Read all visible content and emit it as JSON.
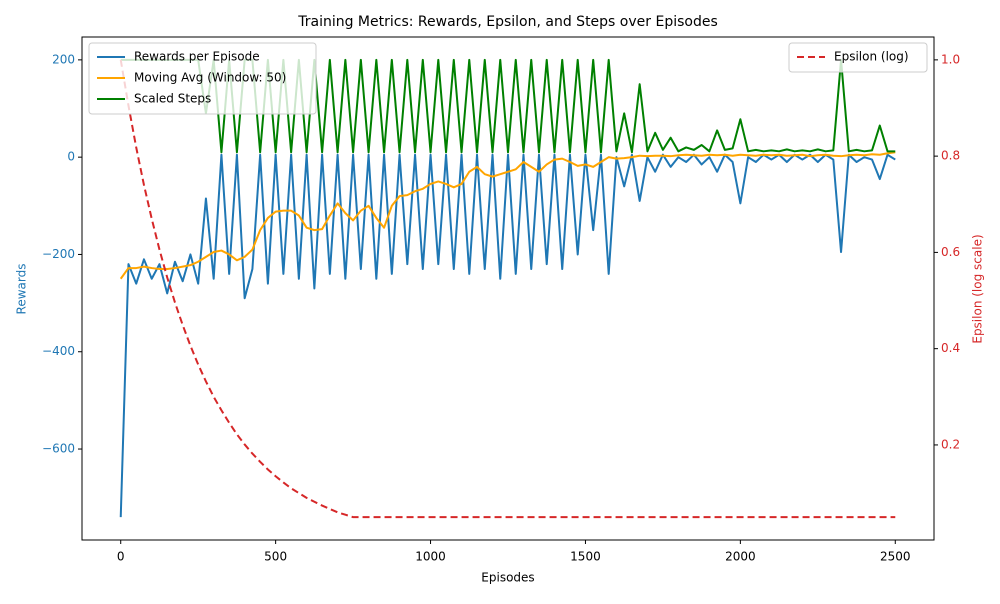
{
  "chart_data": {
    "type": "line",
    "title": "Training Metrics: Rewards, Epsilon, and Steps over Episodes",
    "xlabel": "Episodes",
    "ylabel": "Rewards",
    "y2label": "Epsilon (log scale)",
    "x": [
      0,
      25,
      50,
      75,
      100,
      125,
      150,
      175,
      200,
      225,
      250,
      275,
      300,
      325,
      350,
      375,
      400,
      425,
      450,
      475,
      500,
      525,
      550,
      575,
      600,
      625,
      650,
      675,
      700,
      725,
      750,
      775,
      800,
      825,
      850,
      875,
      900,
      925,
      950,
      975,
      1000,
      1025,
      1050,
      1075,
      1100,
      1125,
      1150,
      1175,
      1200,
      1225,
      1250,
      1275,
      1300,
      1325,
      1350,
      1375,
      1400,
      1425,
      1450,
      1475,
      1500,
      1525,
      1550,
      1575,
      1600,
      1625,
      1650,
      1675,
      1700,
      1725,
      1750,
      1775,
      1800,
      1825,
      1850,
      1875,
      1900,
      1925,
      1950,
      1975,
      2000,
      2025,
      2050,
      2075,
      2100,
      2125,
      2150,
      2175,
      2200,
      2225,
      2250,
      2275,
      2300,
      2325,
      2350,
      2375,
      2400,
      2425,
      2450,
      2475,
      2500
    ],
    "series": [
      {
        "name": "Rewards per Episode",
        "color": "#1f77b4",
        "axis": "y",
        "dash": false,
        "values": [
          -740,
          -220,
          -260,
          -210,
          -250,
          -220,
          -280,
          -215,
          -255,
          -200,
          -260,
          -85,
          -250,
          5,
          -240,
          5,
          -290,
          -230,
          5,
          -260,
          5,
          -240,
          5,
          -250,
          5,
          -270,
          5,
          -240,
          5,
          -250,
          5,
          -230,
          5,
          -250,
          5,
          -240,
          5,
          -220,
          5,
          -230,
          5,
          -220,
          5,
          -230,
          5,
          -240,
          5,
          -230,
          5,
          -250,
          5,
          -240,
          5,
          -230,
          5,
          -220,
          5,
          -230,
          5,
          -200,
          5,
          -150,
          5,
          -240,
          0,
          -60,
          5,
          -90,
          0,
          -30,
          5,
          -20,
          0,
          -10,
          5,
          -15,
          0,
          -30,
          5,
          -10,
          -95,
          0,
          -10,
          5,
          -5,
          5,
          -10,
          5,
          -5,
          5,
          -10,
          5,
          -5,
          -195,
          5,
          -10,
          0,
          -5,
          -45,
          5,
          -5
        ]
      },
      {
        "name": "Moving Avg (Window: 50)",
        "color": "#ffa500",
        "axis": "y",
        "dash": false,
        "values": [
          -250,
          -228,
          -228,
          -225,
          -228,
          -230,
          -230,
          -228,
          -225,
          -222,
          -215,
          -205,
          -195,
          -192,
          -200,
          -212,
          -205,
          -190,
          -150,
          -125,
          -112,
          -110,
          -110,
          -120,
          -145,
          -150,
          -148,
          -120,
          -95,
          -115,
          -130,
          -110,
          -100,
          -125,
          -145,
          -100,
          -80,
          -78,
          -70,
          -65,
          -55,
          -50,
          -55,
          -62,
          -55,
          -30,
          -20,
          -35,
          -40,
          -35,
          -30,
          -25,
          -10,
          -20,
          -30,
          -15,
          -5,
          -3,
          -10,
          -18,
          -15,
          -20,
          -10,
          0,
          -3,
          -2,
          0,
          3,
          2,
          3,
          3,
          2,
          4,
          5,
          4,
          3,
          5,
          4,
          5,
          3,
          5,
          4,
          3,
          5,
          4,
          5,
          3,
          4,
          5,
          2,
          4,
          5,
          3,
          2,
          4,
          5,
          4,
          6,
          5,
          8,
          10
        ]
      },
      {
        "name": "Scaled Steps",
        "color": "#008000",
        "axis": "y",
        "dash": false,
        "values": [
          200,
          200,
          200,
          200,
          200,
          200,
          200,
          200,
          200,
          200,
          200,
          90,
          200,
          10,
          200,
          10,
          200,
          200,
          10,
          200,
          10,
          200,
          10,
          200,
          10,
          200,
          10,
          200,
          10,
          200,
          10,
          200,
          10,
          200,
          10,
          200,
          10,
          200,
          10,
          200,
          10,
          200,
          10,
          200,
          10,
          200,
          10,
          200,
          10,
          200,
          10,
          200,
          10,
          200,
          10,
          200,
          10,
          200,
          10,
          200,
          10,
          200,
          10,
          200,
          12,
          90,
          10,
          150,
          12,
          50,
          15,
          40,
          12,
          20,
          15,
          25,
          12,
          55,
          15,
          18,
          78,
          12,
          15,
          12,
          14,
          12,
          16,
          12,
          14,
          12,
          16,
          12,
          14,
          200,
          12,
          15,
          12,
          14,
          65,
          12,
          12
        ]
      },
      {
        "name": "Epsilon (log)",
        "color": "#d62728",
        "axis": "y2",
        "dash": true,
        "values": [
          1.0,
          0.905,
          0.818,
          0.74,
          0.67,
          0.606,
          0.548,
          0.496,
          0.449,
          0.406,
          0.367,
          0.332,
          0.3,
          0.272,
          0.246,
          0.222,
          0.201,
          0.182,
          0.165,
          0.149,
          0.135,
          0.122,
          0.11,
          0.1,
          0.09,
          0.082,
          0.074,
          0.067,
          0.06,
          0.055,
          0.05,
          0.05,
          0.05,
          0.05,
          0.05,
          0.05,
          0.05,
          0.05,
          0.05,
          0.05,
          0.05,
          0.05,
          0.05,
          0.05,
          0.05,
          0.05,
          0.05,
          0.05,
          0.05,
          0.05,
          0.05,
          0.05,
          0.05,
          0.05,
          0.05,
          0.05,
          0.05,
          0.05,
          0.05,
          0.05,
          0.05,
          0.05,
          0.05,
          0.05,
          0.05,
          0.05,
          0.05,
          0.05,
          0.05,
          0.05,
          0.05,
          0.05,
          0.05,
          0.05,
          0.05,
          0.05,
          0.05,
          0.05,
          0.05,
          0.05,
          0.05,
          0.05,
          0.05,
          0.05,
          0.05,
          0.05,
          0.05,
          0.05,
          0.05,
          0.05,
          0.05,
          0.05,
          0.05,
          0.05,
          0.05,
          0.05,
          0.05,
          0.05,
          0.05,
          0.05,
          0.05
        ]
      }
    ],
    "xlim": [
      -125,
      2625
    ],
    "xticks": [
      0,
      500,
      1000,
      1500,
      2000,
      2500
    ],
    "ylim": [
      -787,
      247
    ],
    "yticks": [
      {
        "value": -600,
        "label": "−600"
      },
      {
        "value": -400,
        "label": "−400"
      },
      {
        "value": -200,
        "label": "−200"
      },
      0,
      200
    ],
    "y2lim": [
      0.0025,
      1.0475
    ],
    "y2ticks": [
      0.2,
      0.4,
      0.6,
      0.8,
      {
        "value": 1,
        "label": "1.0"
      }
    ],
    "legend": "upper left",
    "legend2": "upper right",
    "grid": false
  }
}
